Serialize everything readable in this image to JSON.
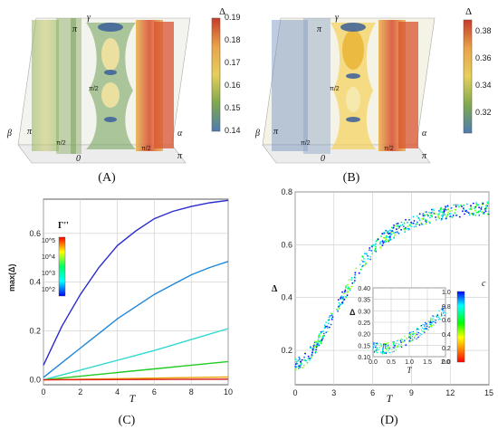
{
  "panels": {
    "a": {
      "caption": "(A)",
      "axes": {
        "gamma": "γ",
        "beta": "β",
        "alpha": "α",
        "pi": "π",
        "half_pi": "π/2",
        "zero": "0"
      },
      "colorbar": {
        "title": "Δ",
        "ticks": [
          "0.19",
          "0.18",
          "0.17",
          "0.16",
          "0.15",
          "0.14"
        ],
        "colors": [
          "#c63a2a",
          "#e9a34a",
          "#e6cf5a",
          "#7fa84e",
          "#4e7bb0"
        ]
      }
    },
    "b": {
      "caption": "(B)",
      "axes": {
        "gamma": "γ",
        "beta": "β",
        "alpha": "α",
        "pi": "π",
        "half_pi": "π/2",
        "zero": "0"
      },
      "colorbar": {
        "title": "Δ",
        "ticks": [
          "0.38",
          "0.36",
          "0.34",
          "0.32"
        ],
        "colors": [
          "#c63a2a",
          "#e9a34a",
          "#e6cf5a",
          "#7fa84e",
          "#4e7bb0"
        ]
      }
    },
    "c": {
      "caption": "(C)",
      "chart_data": {
        "type": "line",
        "xlabel": "T",
        "ylabel": "max(Δ)",
        "xlim": [
          0,
          10
        ],
        "ylim": [
          -0.02,
          0.74
        ],
        "xticks": [
          "0",
          "2",
          "4",
          "6",
          "8",
          "10"
        ],
        "yticks": [
          "0.0",
          "0.2",
          "0.4",
          "0.6"
        ],
        "legend": {
          "title": "Γ''",
          "position": "top-left",
          "labels": [
            "10^5",
            "10^4",
            "10^3",
            "10^2"
          ],
          "colors": [
            "#ff0000",
            "#ffff00",
            "#00ff66",
            "#00ffff",
            "#0000ff"
          ]
        },
        "series": [
          {
            "color": "#2a2ad0",
            "x": [
              0,
              1,
              2,
              3,
              4,
              5,
              6,
              7,
              8,
              9,
              10
            ],
            "values": [
              0.06,
              0.22,
              0.35,
              0.46,
              0.55,
              0.61,
              0.66,
              0.69,
              0.71,
              0.725,
              0.735
            ]
          },
          {
            "color": "#1f86d8",
            "x": [
              0,
              1,
              2,
              3,
              4,
              5,
              6,
              7,
              8,
              9,
              10
            ],
            "values": [
              0.01,
              0.07,
              0.13,
              0.19,
              0.25,
              0.3,
              0.35,
              0.39,
              0.43,
              0.46,
              0.485
            ]
          },
          {
            "color": "#2fd9d0",
            "x": [
              0,
              2,
              4,
              6,
              8,
              10
            ],
            "values": [
              0.0,
              0.04,
              0.08,
              0.12,
              0.165,
              0.21
            ]
          },
          {
            "color": "#22cc22",
            "x": [
              0,
              2,
              4,
              6,
              8,
              10
            ],
            "values": [
              0.0,
              0.015,
              0.03,
              0.045,
              0.06,
              0.075
            ]
          },
          {
            "color": "#e8a000",
            "x": [
              0,
              10
            ],
            "values": [
              0.0,
              0.012
            ]
          },
          {
            "color": "#e02020",
            "x": [
              0,
              10
            ],
            "values": [
              0.0,
              0.003
            ]
          }
        ]
      }
    },
    "d": {
      "caption": "(D)",
      "chart_data": {
        "type": "scatter",
        "xlabel": "T",
        "ylabel": "Δ",
        "xlim": [
          0,
          15
        ],
        "ylim": [
          0.07,
          0.8
        ],
        "xticks": [
          "0",
          "3",
          "6",
          "9",
          "12",
          "15"
        ],
        "yticks": [
          "0.2",
          "0.4",
          "0.6",
          "0.8"
        ],
        "trend": {
          "x": [
            0,
            0.5,
            1,
            1.5,
            2,
            3,
            4,
            5,
            6,
            7,
            8,
            9,
            10,
            11,
            12,
            13,
            14,
            15
          ],
          "values": [
            0.14,
            0.155,
            0.18,
            0.21,
            0.25,
            0.34,
            0.43,
            0.52,
            0.58,
            0.63,
            0.66,
            0.685,
            0.7,
            0.715,
            0.725,
            0.73,
            0.735,
            0.74
          ]
        },
        "colorbar": {
          "title": "c",
          "ticks": [
            "1.0",
            "0.8",
            "0.6",
            "0.4",
            "0.2",
            "0.0"
          ],
          "colors": [
            "#0000ff",
            "#00ffff",
            "#00ff00",
            "#ffff00",
            "#ff8800",
            "#ff0000"
          ]
        },
        "inset": {
          "xlabel": "T",
          "ylabel": "Δ",
          "xlim": [
            0,
            2
          ],
          "ylim": [
            0.1,
            0.4
          ],
          "xticks": [
            "0.0",
            "0.5",
            "1.0",
            "1.5",
            "2.0"
          ],
          "yticks": [
            "0.10",
            "0.15",
            "0.20",
            "0.25",
            "0.30",
            "0.35",
            "0.40"
          ],
          "trend": {
            "x": [
              0,
              0.25,
              0.5,
              0.75,
              1,
              1.25,
              1.5,
              1.75,
              2
            ],
            "values": [
              0.14,
              0.135,
              0.14,
              0.155,
              0.18,
              0.205,
              0.235,
              0.27,
              0.305
            ]
          }
        }
      }
    }
  }
}
